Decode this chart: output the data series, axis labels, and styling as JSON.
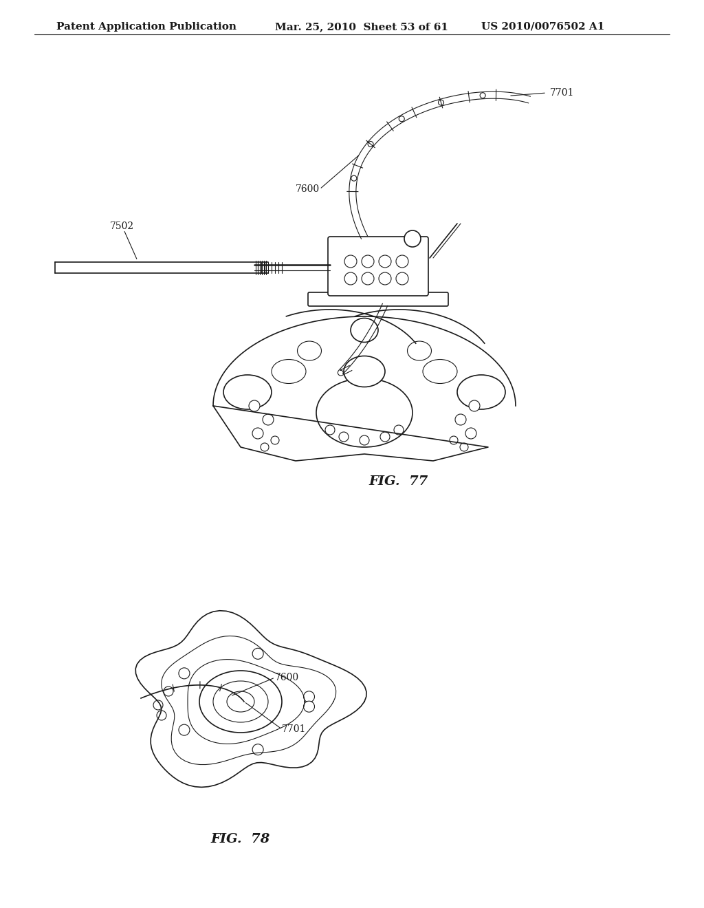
{
  "header_left": "Patent Application Publication",
  "header_mid": "Mar. 25, 2010  Sheet 53 of 61",
  "header_right": "US 2010/0076502 A1",
  "fig77_label": "FIG.  77",
  "fig78_label": "FIG.  78",
  "label_7701_fig77": "7701",
  "label_7600_fig77": "7600",
  "label_7502_fig77": "7502",
  "label_7600_fig78": "7600",
  "label_7701_fig78": "7701",
  "line_color": "#1a1a1a",
  "bg_color": "#ffffff",
  "header_fontsize": 11,
  "label_fontsize": 10,
  "fig_label_fontsize": 14
}
